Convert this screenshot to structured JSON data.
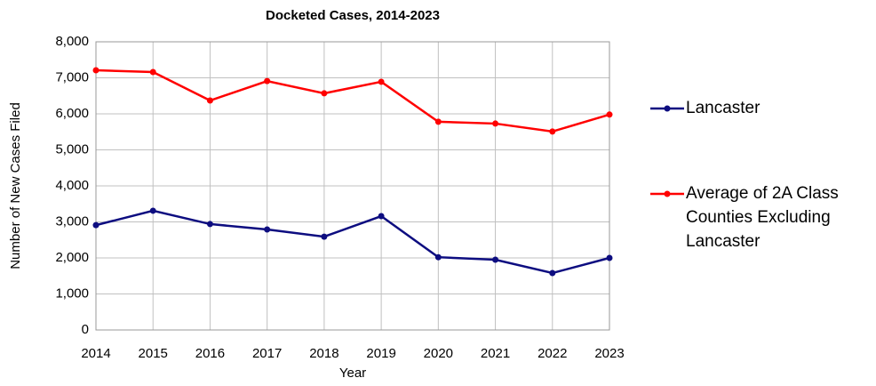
{
  "chart_data": {
    "type": "line",
    "title": "Docketed Cases, 2014-2023",
    "x_label": "Year",
    "y_label": "Number of New Cases Filed",
    "categories": [
      "2014",
      "2015",
      "2016",
      "2017",
      "2018",
      "2019",
      "2020",
      "2021",
      "2022",
      "2023"
    ],
    "series": [
      {
        "name": "Lancaster",
        "color": "#0d0d80",
        "values": [
          2910,
          3310,
          2940,
          2790,
          2590,
          3160,
          2020,
          1950,
          1580,
          2000
        ]
      },
      {
        "name": "Average of 2A Class Counties Excluding Lancaster",
        "color": "#ff0000",
        "values": [
          7210,
          7160,
          6370,
          6910,
          6570,
          6890,
          5780,
          5730,
          5510,
          5980
        ]
      }
    ],
    "ylim": [
      0,
      8000
    ],
    "yticks": [
      0,
      {
        "value": 1000,
        "label": "1,000"
      },
      {
        "value": 2000,
        "label": "2,000"
      },
      {
        "value": 3000,
        "label": "3,000"
      },
      {
        "value": 4000,
        "label": "4,000"
      },
      {
        "value": 5000,
        "label": "5,000"
      },
      {
        "value": 6000,
        "label": "6,000"
      },
      {
        "value": 7000,
        "label": "7,000"
      },
      {
        "value": 8000,
        "label": "8,000"
      }
    ],
    "grid": true,
    "legend": "right"
  }
}
